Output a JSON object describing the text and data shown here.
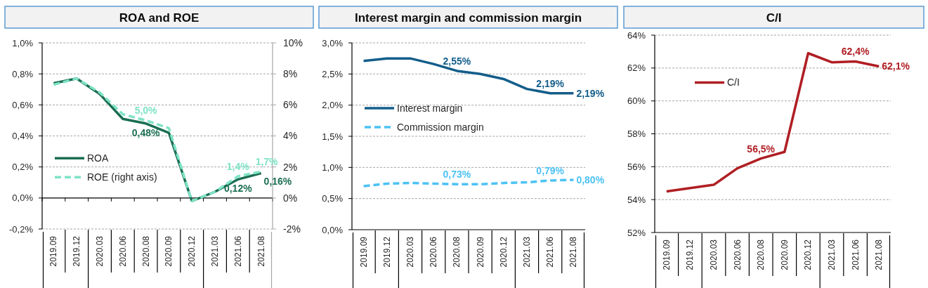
{
  "chart_data": [
    {
      "type": "line",
      "title": "ROA and ROE",
      "categories": [
        "2019.09",
        "2019.12",
        "2020.03",
        "2020.06",
        "2020.08",
        "2020.09",
        "2020.12",
        "2021.03",
        "2021.06",
        "2021.08"
      ],
      "series": [
        {
          "name": "ROA",
          "color": "#1b6e52",
          "values": [
            0.74,
            0.77,
            0.67,
            0.51,
            0.48,
            0.42,
            -0.02,
            0.04,
            0.12,
            0.16
          ],
          "value_labels": [
            null,
            null,
            null,
            null,
            "0,48%",
            null,
            null,
            null,
            "0,12%",
            "0,16%"
          ]
        },
        {
          "name": "ROE (right axis)",
          "color": "#7fe3c6",
          "axis": "y2",
          "line_style": "dashed",
          "values": [
            7.3,
            7.7,
            6.8,
            5.4,
            5.0,
            4.5,
            -0.2,
            0.4,
            1.4,
            1.7
          ],
          "value_labels": [
            null,
            null,
            null,
            null,
            "5,0%",
            null,
            null,
            null,
            "1,4%",
            "1,7%"
          ]
        }
      ],
      "ylim": [
        -0.2,
        1.0
      ],
      "yticks": [
        {
          "value": -0.2,
          "label": "-0,2%"
        },
        {
          "value": 0,
          "label": "0,0%"
        },
        {
          "value": 0.2,
          "label": "0,2%"
        },
        {
          "value": 0.4,
          "label": "0,4%"
        },
        {
          "value": 0.6,
          "label": "0,6%"
        },
        {
          "value": 0.8,
          "label": "0,8%"
        },
        {
          "value": 1.0,
          "label": "1,0%"
        }
      ],
      "y2lim": [
        -2,
        10
      ],
      "y2ticks": [
        {
          "value": -2,
          "label": "-2%"
        },
        {
          "value": 0,
          "label": "0%"
        },
        {
          "value": 2,
          "label": "2%"
        },
        {
          "value": 4,
          "label": "4%"
        },
        {
          "value": 6,
          "label": "6%"
        },
        {
          "value": 8,
          "label": "8%"
        },
        {
          "value": 10,
          "label": "10%"
        }
      ],
      "grid": "y",
      "legend": "bottom left"
    },
    {
      "type": "line",
      "title": "Interest margin and commission margin",
      "categories": [
        "2019.09",
        "2019.12",
        "2020.03",
        "2020.06",
        "2020.08",
        "2020.09",
        "2020.12",
        "2021.03",
        "2021.06",
        "2021.08"
      ],
      "series": [
        {
          "name": "Interest margin",
          "color": "#135d8a",
          "values": [
            2.71,
            2.75,
            2.75,
            2.66,
            2.55,
            2.5,
            2.42,
            2.26,
            2.19,
            2.19
          ],
          "value_labels": [
            null,
            null,
            null,
            null,
            "2,55%",
            null,
            null,
            null,
            "2,19%",
            "2,19%"
          ]
        },
        {
          "name": "Commission margin",
          "color": "#4cc2f5",
          "line_style": "dashed",
          "values": [
            0.7,
            0.74,
            0.75,
            0.74,
            0.73,
            0.73,
            0.75,
            0.76,
            0.79,
            0.8
          ],
          "value_labels": [
            null,
            null,
            null,
            null,
            "0,73%",
            null,
            null,
            null,
            "0,79%",
            "0,80%"
          ]
        }
      ],
      "ylim": [
        0,
        3.0
      ],
      "yticks": [
        {
          "value": 0,
          "label": "0,0%"
        },
        {
          "value": 0.5,
          "label": "0,5%"
        },
        {
          "value": 1.0,
          "label": "1,0%"
        },
        {
          "value": 1.5,
          "label": "1,5%"
        },
        {
          "value": 2.0,
          "label": "2,0%"
        },
        {
          "value": 2.5,
          "label": "2,5%"
        },
        {
          "value": 3.0,
          "label": "3,0%"
        }
      ],
      "grid": "y",
      "legend": "left"
    },
    {
      "type": "line",
      "title": "C/I",
      "categories": [
        "2019.09",
        "2019.12",
        "2020.03",
        "2020.06",
        "2020.08",
        "2020.09",
        "2020.12",
        "2021.03",
        "2021.06",
        "2021.08"
      ],
      "series": [
        {
          "name": "C/I",
          "color": "#b01e23",
          "values": [
            54.5,
            54.7,
            54.9,
            55.9,
            56.5,
            56.9,
            62.9,
            62.35,
            62.4,
            62.1
          ],
          "value_labels": [
            null,
            null,
            null,
            null,
            "56,5%",
            null,
            null,
            null,
            "62,4%",
            "62,1%"
          ]
        }
      ],
      "ylim": [
        52,
        64
      ],
      "yticks": [
        {
          "value": 52,
          "label": "52%"
        },
        {
          "value": 54,
          "label": "54%"
        },
        {
          "value": 56,
          "label": "56%"
        },
        {
          "value": 58,
          "label": "58%"
        },
        {
          "value": 60,
          "label": "60%"
        },
        {
          "value": 62,
          "label": "62%"
        },
        {
          "value": 64,
          "label": "64%"
        }
      ],
      "grid": "y",
      "legend": "top left"
    }
  ]
}
